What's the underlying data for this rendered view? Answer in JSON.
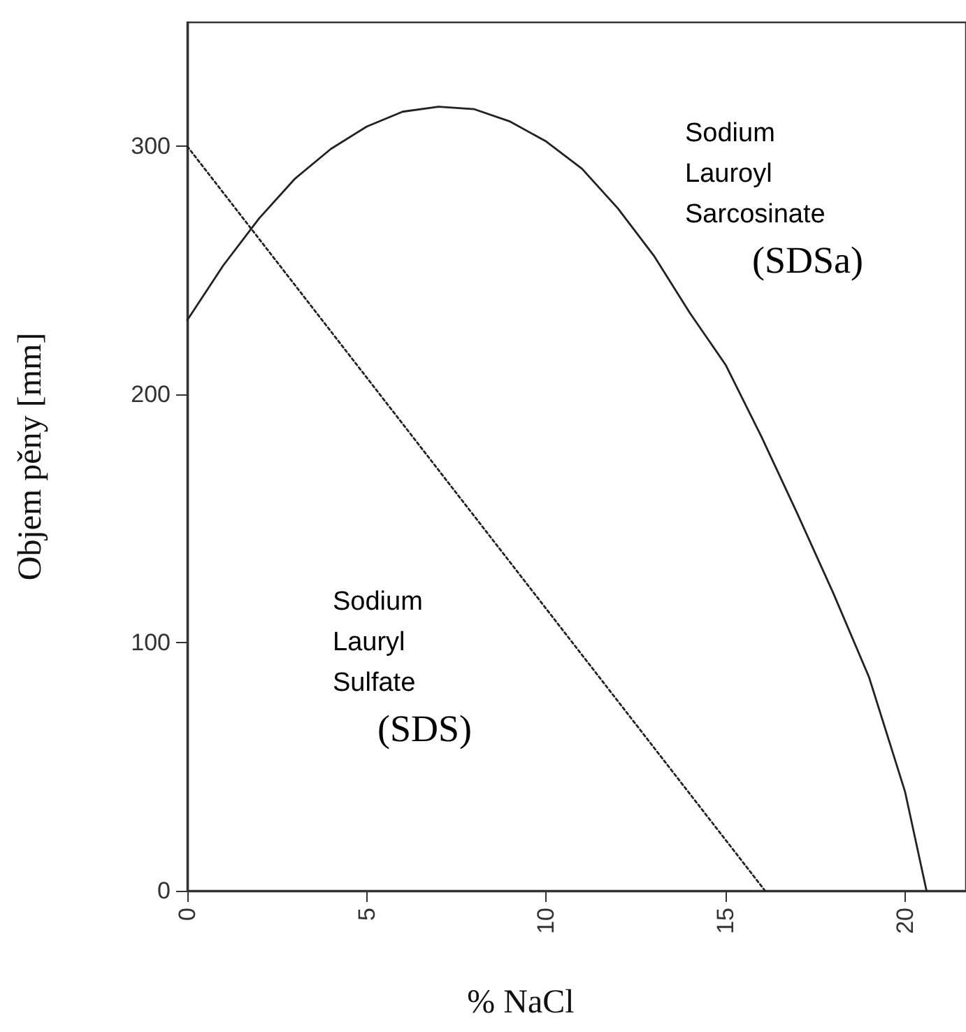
{
  "chart_data": {
    "type": "line",
    "xlabel": "% NaCl",
    "ylabel": "Objem pěny [mm]",
    "xlim": [
      0,
      21.7
    ],
    "xticks": [
      0,
      5,
      10,
      15,
      20
    ],
    "ylim": [
      0,
      350
    ],
    "yticks": [
      0,
      100,
      200,
      300
    ],
    "grid": false,
    "legend": false,
    "marker": "none",
    "series": [
      {
        "name": "Sodium Lauroyl Sarcosinate (SDSa)",
        "color": "#222222",
        "line_style": "solid",
        "x": [
          0,
          1,
          2,
          3,
          4,
          5,
          6,
          7,
          8,
          9,
          10,
          11,
          12,
          13,
          14,
          15,
          16,
          17,
          18,
          19,
          20,
          20.6
        ],
        "values": [
          230,
          252,
          271,
          287,
          299,
          308,
          314,
          316,
          315,
          310,
          302,
          291,
          275,
          256,
          233,
          212,
          183,
          152,
          120,
          86,
          40,
          0
        ]
      },
      {
        "name": "Sodium Lauryl Sulfate (SDS)",
        "color": "#222222",
        "line_style": "dotted",
        "x": [
          0,
          16.1
        ],
        "values": [
          300,
          0
        ]
      }
    ]
  }
}
